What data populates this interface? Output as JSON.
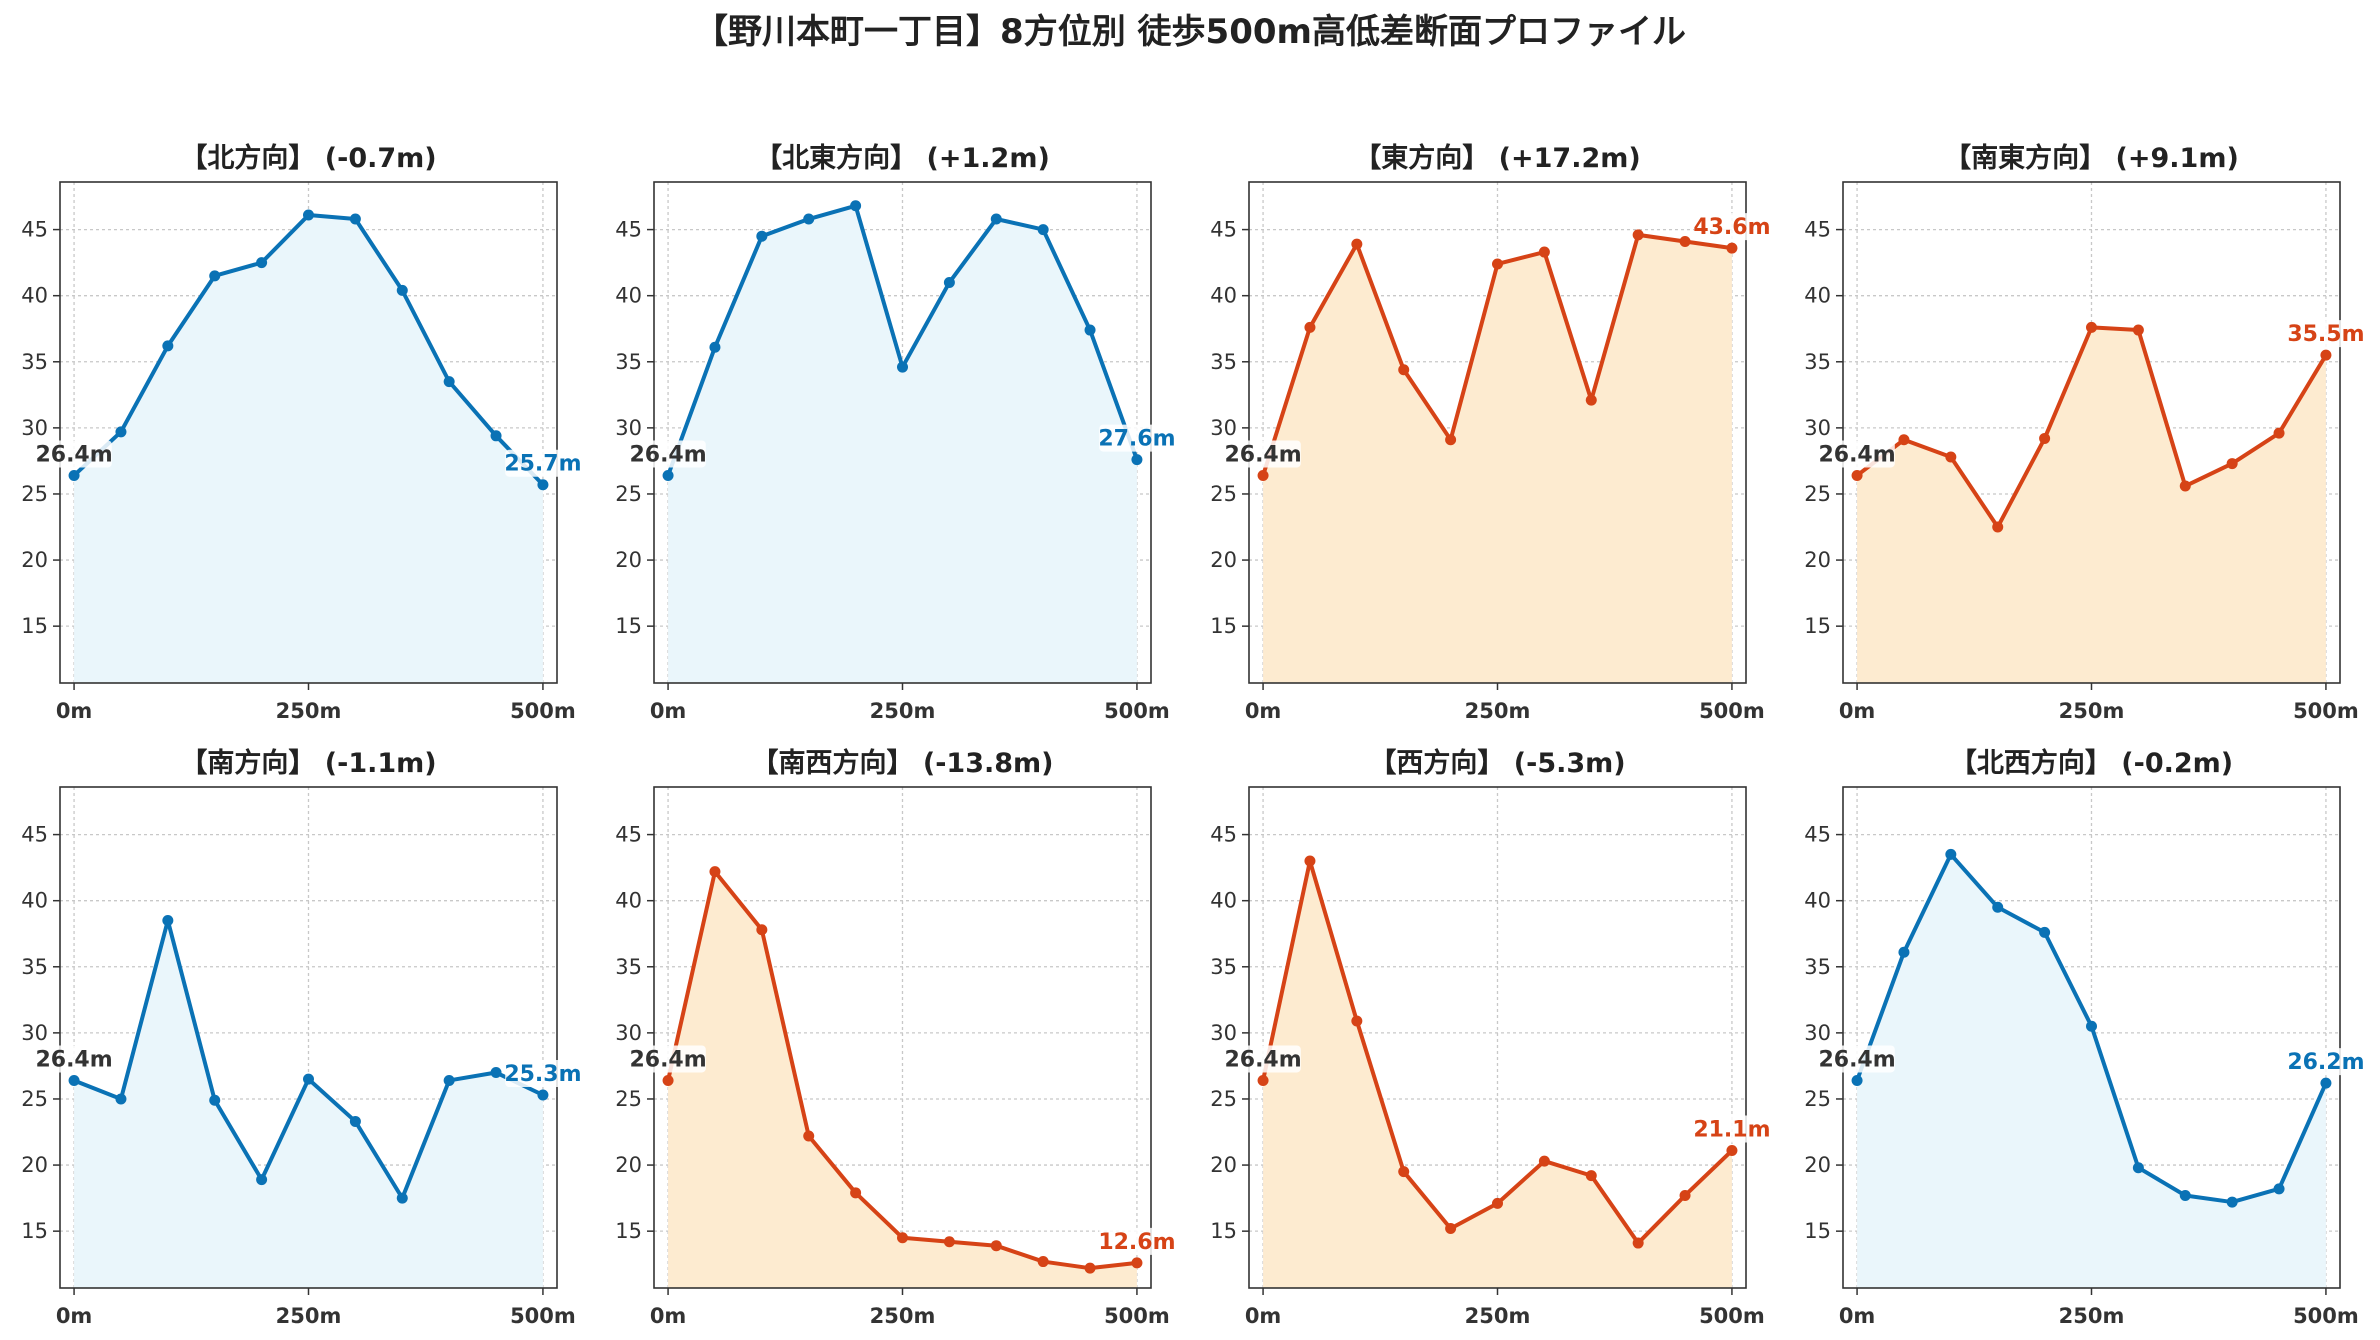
{
  "title": "【野川本町一丁目】8方位別 徒歩500m高低差断面プロファイル",
  "colors": {
    "up_line": "#d64316",
    "up_fill": "#fdebd0",
    "down_line": "#0a72b5",
    "down_fill": "#eaf6fb",
    "start_label": "#333333",
    "grid": "#c8c8c8",
    "axis": "#333333"
  },
  "chart_data": [
    {
      "type": "area",
      "title": "【北方向】 (-0.7m)",
      "trend": "down",
      "x": [
        0,
        50,
        100,
        150,
        200,
        250,
        300,
        350,
        400,
        450,
        500
      ],
      "y": [
        26.4,
        29.7,
        36.2,
        41.5,
        42.5,
        46.1,
        45.8,
        40.4,
        33.5,
        29.4,
        25.7
      ],
      "start_label": "26.4m",
      "end_label": "25.7m",
      "xticks": [
        0,
        250,
        500
      ],
      "xtick_labels": [
        "0m",
        "250m",
        "500m"
      ],
      "yticks": [
        15,
        20,
        25,
        30,
        35,
        40,
        45
      ],
      "xlim": [
        -15,
        515
      ],
      "ylim": [
        10.7,
        48.6
      ],
      "grid": true
    },
    {
      "type": "area",
      "title": "【北東方向】 (+1.2m)",
      "trend": "down",
      "x": [
        0,
        50,
        100,
        150,
        200,
        250,
        300,
        350,
        400,
        450,
        500
      ],
      "y": [
        26.4,
        36.1,
        44.5,
        45.8,
        46.8,
        34.6,
        41.0,
        45.8,
        45.0,
        37.4,
        27.6
      ],
      "start_label": "26.4m",
      "end_label": "27.6m",
      "xticks": [
        0,
        250,
        500
      ],
      "xtick_labels": [
        "0m",
        "250m",
        "500m"
      ],
      "yticks": [
        15,
        20,
        25,
        30,
        35,
        40,
        45
      ],
      "xlim": [
        -15,
        515
      ],
      "ylim": [
        10.7,
        48.6
      ],
      "grid": true
    },
    {
      "type": "area",
      "title": "【東方向】 (+17.2m)",
      "trend": "up",
      "x": [
        0,
        50,
        100,
        150,
        200,
        250,
        300,
        350,
        400,
        450,
        500
      ],
      "y": [
        26.4,
        37.6,
        43.9,
        34.4,
        29.1,
        42.4,
        43.3,
        32.1,
        44.6,
        44.1,
        43.6
      ],
      "start_label": "26.4m",
      "end_label": "43.6m",
      "xticks": [
        0,
        250,
        500
      ],
      "xtick_labels": [
        "0m",
        "250m",
        "500m"
      ],
      "yticks": [
        15,
        20,
        25,
        30,
        35,
        40,
        45
      ],
      "xlim": [
        -15,
        515
      ],
      "ylim": [
        10.7,
        48.6
      ],
      "grid": true
    },
    {
      "type": "area",
      "title": "【南東方向】 (+9.1m)",
      "trend": "up",
      "x": [
        0,
        50,
        100,
        150,
        200,
        250,
        300,
        350,
        400,
        450,
        500
      ],
      "y": [
        26.4,
        29.1,
        27.8,
        22.5,
        29.2,
        37.6,
        37.4,
        25.6,
        27.3,
        29.6,
        35.5
      ],
      "start_label": "26.4m",
      "end_label": "35.5m",
      "xticks": [
        0,
        250,
        500
      ],
      "xtick_labels": [
        "0m",
        "250m",
        "500m"
      ],
      "yticks": [
        15,
        20,
        25,
        30,
        35,
        40,
        45
      ],
      "xlim": [
        -15,
        515
      ],
      "ylim": [
        10.7,
        48.6
      ],
      "grid": true
    },
    {
      "type": "area",
      "title": "【南方向】 (-1.1m)",
      "trend": "down",
      "x": [
        0,
        50,
        100,
        150,
        200,
        250,
        300,
        350,
        400,
        450,
        500
      ],
      "y": [
        26.4,
        25.0,
        38.5,
        24.9,
        18.9,
        26.5,
        23.3,
        17.5,
        26.4,
        27.0,
        25.3
      ],
      "start_label": "26.4m",
      "end_label": "25.3m",
      "xticks": [
        0,
        250,
        500
      ],
      "xtick_labels": [
        "0m",
        "250m",
        "500m"
      ],
      "yticks": [
        15,
        20,
        25,
        30,
        35,
        40,
        45
      ],
      "xlim": [
        -15,
        515
      ],
      "ylim": [
        10.7,
        48.6
      ],
      "grid": true
    },
    {
      "type": "area",
      "title": "【南西方向】 (-13.8m)",
      "trend": "up",
      "x": [
        0,
        50,
        100,
        150,
        200,
        250,
        300,
        350,
        400,
        450,
        500
      ],
      "y": [
        26.4,
        42.2,
        37.8,
        22.2,
        17.9,
        14.5,
        14.2,
        13.9,
        12.7,
        12.2,
        12.6
      ],
      "start_label": "26.4m",
      "end_label": "12.6m",
      "xticks": [
        0,
        250,
        500
      ],
      "xtick_labels": [
        "0m",
        "250m",
        "500m"
      ],
      "yticks": [
        15,
        20,
        25,
        30,
        35,
        40,
        45
      ],
      "xlim": [
        -15,
        515
      ],
      "ylim": [
        10.7,
        48.6
      ],
      "grid": true
    },
    {
      "type": "area",
      "title": "【西方向】 (-5.3m)",
      "trend": "up",
      "x": [
        0,
        50,
        100,
        150,
        200,
        250,
        300,
        350,
        400,
        450,
        500
      ],
      "y": [
        26.4,
        43.0,
        30.9,
        19.5,
        15.2,
        17.1,
        20.3,
        19.2,
        14.1,
        17.7,
        21.1
      ],
      "start_label": "26.4m",
      "end_label": "21.1m",
      "xticks": [
        0,
        250,
        500
      ],
      "xtick_labels": [
        "0m",
        "250m",
        "500m"
      ],
      "yticks": [
        15,
        20,
        25,
        30,
        35,
        40,
        45
      ],
      "xlim": [
        -15,
        515
      ],
      "ylim": [
        10.7,
        48.6
      ],
      "grid": true
    },
    {
      "type": "area",
      "title": "【北西方向】 (-0.2m)",
      "trend": "down",
      "x": [
        0,
        50,
        100,
        150,
        200,
        250,
        300,
        350,
        400,
        450,
        500
      ],
      "y": [
        26.4,
        36.1,
        43.5,
        39.5,
        37.6,
        30.5,
        19.8,
        17.7,
        17.2,
        18.2,
        26.2
      ],
      "start_label": "26.4m",
      "end_label": "26.2m",
      "xticks": [
        0,
        250,
        500
      ],
      "xtick_labels": [
        "0m",
        "250m",
        "500m"
      ],
      "yticks": [
        15,
        20,
        25,
        30,
        35,
        40,
        45
      ],
      "xlim": [
        -15,
        515
      ],
      "ylim": [
        10.7,
        48.6
      ],
      "grid": true
    }
  ]
}
